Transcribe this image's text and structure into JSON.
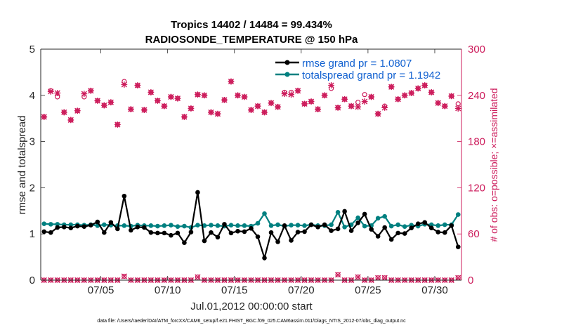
{
  "chart_data": {
    "type": "line",
    "title_line1": "Tropics 14402 / 14484 = 99.434%",
    "title_line2": "RADIOSONDE_TEMPERATURE @ 150 hPa",
    "xlabel": "Jul.01,2012 00:00:00 start",
    "ylabel_left": "rmse and totalspread",
    "ylabel_right": "# of obs: o=possible; ×=assimilated",
    "xlim": [
      0.5,
      32
    ],
    "ylim_left": [
      0,
      5
    ],
    "ylim_right": [
      0,
      300
    ],
    "xticks": [
      5,
      10,
      15,
      20,
      25,
      30
    ],
    "xtick_labels": [
      "07/05",
      "07/10",
      "07/15",
      "07/20",
      "07/25",
      "07/30"
    ],
    "yticks_left": [
      0,
      1,
      2,
      3,
      4,
      5
    ],
    "ytick_labels_left": [
      "0",
      "1",
      "2",
      "3",
      "4",
      "5"
    ],
    "yticks_right": [
      0,
      60,
      120,
      180,
      240,
      300
    ],
    "ytick_labels_right": [
      "0",
      "60",
      "120",
      "180",
      "240",
      "300"
    ],
    "legend": {
      "location": "top-right",
      "entries": [
        "rmse grand pr = 1.0807",
        "totalspread grand pr = 1.1942"
      ]
    },
    "colors": {
      "rmse": "#000000",
      "spread": "#008080",
      "obs": "#cc1a5a",
      "legend_text": "#1060d0"
    },
    "footnote": "data file: /Users/raeder/DAI/ATM_forcXX/CAM6_setup/f.e21.FHIST_BGC.f09_025.CAM6assim.011/Diags_NTrS_2012-07/obs_diag_output.nc",
    "series": [
      {
        "name": "rmse",
        "x": [
          0.75,
          1.25,
          1.75,
          2.25,
          2.75,
          3.25,
          3.75,
          4.25,
          4.75,
          5.25,
          5.75,
          6.25,
          6.75,
          7.25,
          7.75,
          8.25,
          8.75,
          9.25,
          9.75,
          10.25,
          10.75,
          11.25,
          11.75,
          12.25,
          12.75,
          13.25,
          13.75,
          14.25,
          14.75,
          15.25,
          15.75,
          16.25,
          16.75,
          17.25,
          17.75,
          18.25,
          18.75,
          19.25,
          19.75,
          20.25,
          20.75,
          21.25,
          21.75,
          22.25,
          22.75,
          23.25,
          23.75,
          24.25,
          24.75,
          25.25,
          25.75,
          26.25,
          26.75,
          27.25,
          27.75,
          28.25,
          28.75,
          29.25,
          29.75,
          30.25,
          30.75,
          31.25,
          31.75
        ],
        "values": [
          1.05,
          1.03,
          1.14,
          1.15,
          1.13,
          1.17,
          1.16,
          1.19,
          1.26,
          1.03,
          1.25,
          1.11,
          1.82,
          1.08,
          1.15,
          1.14,
          1.03,
          1.02,
          1.02,
          0.97,
          1.02,
          0.81,
          1.04,
          1.9,
          0.85,
          1.03,
          0.93,
          1.21,
          1.02,
          1.06,
          1.05,
          1.12,
          0.94,
          0.48,
          1.03,
          0.83,
          1.18,
          0.86,
          1.04,
          1.05,
          1.2,
          1.15,
          1.2,
          1.07,
          1.11,
          1.49,
          1.07,
          1.24,
          1.43,
          1.1,
          0.95,
          1.14,
          0.88,
          1.02,
          1.01,
          1.13,
          1.22,
          1.25,
          1.13,
          1.04,
          1.03,
          1.18,
          0.72
        ]
      },
      {
        "name": "totalspread",
        "x": [
          0.75,
          1.25,
          1.75,
          2.25,
          2.75,
          3.25,
          3.75,
          4.25,
          4.75,
          5.25,
          5.75,
          6.25,
          6.75,
          7.25,
          7.75,
          8.25,
          8.75,
          9.25,
          9.75,
          10.25,
          10.75,
          11.25,
          11.75,
          12.25,
          12.75,
          13.25,
          13.75,
          14.25,
          14.75,
          15.25,
          15.75,
          16.25,
          16.75,
          17.25,
          17.75,
          18.25,
          18.75,
          19.25,
          19.75,
          20.25,
          20.75,
          21.25,
          21.75,
          22.25,
          22.75,
          23.25,
          23.75,
          24.25,
          24.75,
          25.25,
          25.75,
          26.25,
          26.75,
          27.25,
          27.75,
          28.25,
          28.75,
          29.25,
          29.75,
          30.25,
          30.75,
          31.25,
          31.75
        ],
        "values": [
          1.22,
          1.21,
          1.21,
          1.2,
          1.2,
          1.2,
          1.19,
          1.2,
          1.18,
          1.2,
          1.19,
          1.18,
          1.18,
          1.17,
          1.19,
          1.18,
          1.18,
          1.17,
          1.18,
          1.19,
          1.16,
          1.17,
          1.14,
          1.19,
          1.18,
          1.19,
          1.18,
          1.17,
          1.19,
          1.18,
          1.18,
          1.17,
          1.23,
          1.44,
          1.18,
          1.2,
          1.17,
          1.19,
          1.19,
          1.18,
          1.2,
          1.18,
          1.18,
          1.2,
          1.47,
          1.15,
          1.2,
          1.35,
          1.17,
          1.18,
          1.34,
          1.38,
          1.17,
          1.2,
          1.16,
          1.19,
          1.17,
          1.21,
          1.2,
          1.18,
          1.2,
          1.2,
          1.42
        ]
      },
      {
        "name": "obs_possible",
        "x": [
          0.75,
          1.25,
          1.75,
          2.25,
          2.75,
          3.25,
          3.75,
          4.25,
          4.75,
          5.25,
          5.75,
          6.25,
          6.75,
          7.25,
          7.75,
          8.25,
          8.75,
          9.25,
          9.75,
          10.25,
          10.75,
          11.25,
          11.75,
          12.25,
          12.75,
          13.25,
          13.75,
          14.25,
          14.75,
          15.25,
          15.75,
          16.25,
          16.75,
          17.25,
          17.75,
          18.25,
          18.75,
          19.25,
          19.75,
          20.25,
          20.75,
          21.25,
          21.75,
          22.25,
          22.75,
          23.25,
          23.75,
          24.25,
          24.75,
          25.25,
          25.75,
          26.25,
          26.75,
          27.25,
          27.75,
          28.25,
          28.75,
          29.25,
          29.75,
          30.25,
          30.75,
          31.25,
          31.75
        ],
        "values": [
          212,
          246,
          238,
          218,
          208,
          220,
          238,
          246,
          233,
          227,
          231,
          202,
          258,
          222,
          253,
          221,
          244,
          233,
          226,
          238,
          236,
          212,
          223,
          241,
          240,
          218,
          216,
          234,
          258,
          240,
          238,
          221,
          226,
          218,
          230,
          225,
          244,
          244,
          246,
          229,
          232,
          222,
          240,
          249,
          224,
          235,
          226,
          231,
          241,
          238,
          216,
          226,
          251,
          235,
          240,
          243,
          249,
          253,
          244,
          230,
          226,
          239,
          229
        ]
      },
      {
        "name": "obs_assimilated",
        "x": [
          0.75,
          1.25,
          1.75,
          2.25,
          2.75,
          3.25,
          3.75,
          4.25,
          4.75,
          5.25,
          5.75,
          6.25,
          6.75,
          7.25,
          7.75,
          8.25,
          8.75,
          9.25,
          9.75,
          10.25,
          10.75,
          11.25,
          11.75,
          12.25,
          12.75,
          13.25,
          13.75,
          14.25,
          14.75,
          15.25,
          15.75,
          16.25,
          16.75,
          17.25,
          17.75,
          18.25,
          18.75,
          19.25,
          19.75,
          20.25,
          20.75,
          21.25,
          21.75,
          22.25,
          22.75,
          23.25,
          23.75,
          24.25,
          24.75,
          25.25,
          25.75,
          26.25,
          26.75,
          27.25,
          27.75,
          28.25,
          28.75,
          29.25,
          29.75,
          30.25,
          30.75,
          31.25,
          31.75
        ],
        "values": [
          212,
          245,
          243,
          218,
          208,
          220,
          242,
          246,
          233,
          227,
          231,
          202,
          254,
          222,
          253,
          221,
          244,
          233,
          226,
          238,
          236,
          212,
          223,
          241,
          240,
          218,
          216,
          234,
          258,
          240,
          238,
          221,
          226,
          218,
          230,
          225,
          242,
          241,
          246,
          229,
          232,
          222,
          240,
          253,
          224,
          235,
          226,
          225,
          232,
          238,
          216,
          224,
          251,
          235,
          240,
          243,
          249,
          253,
          244,
          230,
          226,
          239,
          223
        ]
      },
      {
        "name": "obs_rejected",
        "x": [
          0.75,
          1.25,
          1.75,
          2.25,
          2.75,
          3.25,
          3.75,
          4.25,
          4.75,
          5.25,
          5.75,
          6.25,
          6.75,
          7.25,
          7.75,
          8.25,
          8.75,
          9.25,
          9.75,
          10.25,
          10.75,
          11.25,
          11.75,
          12.25,
          12.75,
          13.25,
          13.75,
          14.25,
          14.75,
          15.25,
          15.75,
          16.25,
          16.75,
          17.25,
          17.75,
          18.25,
          18.75,
          19.25,
          19.75,
          20.25,
          20.75,
          21.25,
          21.75,
          22.25,
          22.75,
          23.25,
          23.75,
          24.25,
          24.75,
          25.25,
          25.75,
          26.25,
          26.75,
          27.25,
          27.75,
          28.25,
          28.75,
          29.25,
          29.75,
          30.25,
          30.75,
          31.25,
          31.75
        ],
        "values": [
          0,
          0,
          0,
          0,
          0,
          0,
          0,
          0,
          0,
          0,
          0,
          0,
          5,
          0,
          0,
          0,
          0,
          0,
          0,
          0,
          0,
          0,
          0,
          4,
          0,
          0,
          0,
          0,
          0,
          0,
          0,
          0,
          0,
          0,
          0,
          0,
          0,
          0,
          0,
          0,
          0,
          0,
          0,
          0,
          7,
          0,
          0,
          4,
          0,
          0,
          3,
          3,
          0,
          0,
          0,
          0,
          0,
          0,
          0,
          0,
          0,
          0,
          3
        ]
      }
    ]
  }
}
